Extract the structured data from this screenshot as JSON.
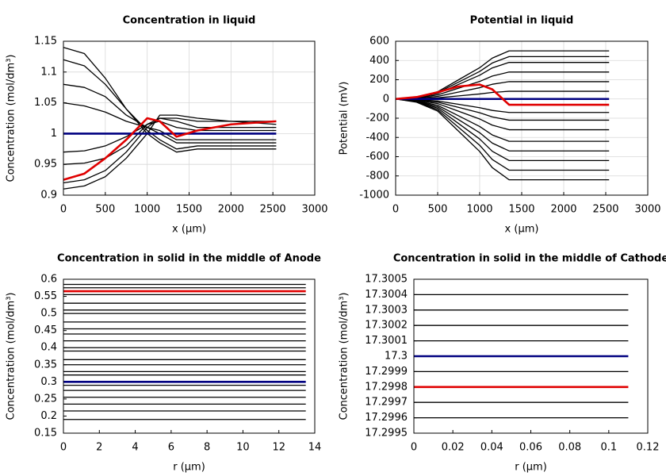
{
  "chart_data": [
    {
      "type": "line",
      "title": "Concentration in liquid",
      "x_label": "x (μm)",
      "y_label": "Concentration (mol/dm³)",
      "xlim": [
        0,
        3000
      ],
      "xticks": [
        0,
        500,
        1000,
        1500,
        2000,
        2500,
        3000
      ],
      "ylim": [
        0.9,
        1.15
      ],
      "yticks": [
        0.9,
        0.95,
        1,
        1.05,
        1.1,
        1.15
      ],
      "grid": true,
      "x": [
        0,
        250,
        500,
        750,
        1000,
        1150,
        1350,
        1600,
        2000,
        2540
      ],
      "series": [
        {
          "color": "#000000",
          "values": [
            1.14,
            1.13,
            1.09,
            1.04,
            1.0,
            0.985,
            0.97,
            0.975,
            0.975,
            0.975
          ]
        },
        {
          "color": "#000000",
          "values": [
            1.12,
            1.11,
            1.08,
            1.04,
            1.005,
            0.99,
            0.975,
            0.98,
            0.98,
            0.98
          ]
        },
        {
          "color": "#000000",
          "values": [
            1.08,
            1.075,
            1.06,
            1.03,
            1.01,
            1.0,
            0.985,
            0.985,
            0.985,
            0.985
          ]
        },
        {
          "color": "#000000",
          "values": [
            1.05,
            1.045,
            1.035,
            1.02,
            1.01,
            1.005,
            0.99,
            0.99,
            0.99,
            0.99
          ]
        },
        {
          "color": "#000000",
          "values": [
            0.97,
            0.972,
            0.98,
            0.995,
            1.015,
            1.02,
            1.01,
            1.005,
            1.005,
            1.005
          ]
        },
        {
          "color": "#000000",
          "values": [
            0.95,
            0.952,
            0.96,
            0.98,
            1.015,
            1.025,
            1.02,
            1.01,
            1.01,
            1.01
          ]
        },
        {
          "color": "#000000",
          "values": [
            0.91,
            0.915,
            0.93,
            0.96,
            1.0,
            1.03,
            1.03,
            1.025,
            1.02,
            1.015
          ]
        },
        {
          "color": "#000000",
          "values": [
            0.92,
            0.925,
            0.94,
            0.97,
            1.01,
            1.025,
            1.025,
            1.02,
            1.02,
            1.02
          ]
        },
        {
          "color": "#000080",
          "values": [
            1,
            1,
            1,
            1,
            1,
            1,
            1,
            1,
            1,
            1
          ]
        },
        {
          "color": "#e00000",
          "values": [
            0.925,
            0.935,
            0.96,
            0.99,
            1.025,
            1.02,
            0.995,
            1.005,
            1.015,
            1.02
          ]
        }
      ]
    },
    {
      "type": "line",
      "title": "Potential in liquid",
      "x_label": "x (μm)",
      "y_label": "Potential (mV)",
      "xlim": [
        0,
        3000
      ],
      "xticks": [
        0,
        500,
        1000,
        1500,
        2000,
        2500,
        3000
      ],
      "ylim": [
        -1000,
        600
      ],
      "yticks": [
        -1000,
        -800,
        -600,
        -400,
        -200,
        0,
        200,
        400,
        600
      ],
      "grid": true,
      "x": [
        0,
        250,
        500,
        750,
        1000,
        1150,
        1350,
        1600,
        2000,
        2540
      ],
      "series": [
        {
          "color": "#000000",
          "values": [
            0,
            20,
            75,
            200,
            325,
            425,
            500,
            500,
            500,
            500
          ]
        },
        {
          "color": "#000000",
          "values": [
            0,
            18,
            66,
            176,
            286,
            374,
            440,
            440,
            440,
            440
          ]
        },
        {
          "color": "#000000",
          "values": [
            0,
            15,
            57,
            152,
            247,
            323,
            380,
            380,
            380,
            380
          ]
        },
        {
          "color": "#000000",
          "values": [
            0,
            11,
            42,
            112,
            182,
            238,
            280,
            280,
            280,
            280
          ]
        },
        {
          "color": "#000000",
          "values": [
            0,
            7,
            27,
            72,
            117,
            153,
            180,
            180,
            180,
            180
          ]
        },
        {
          "color": "#000000",
          "values": [
            0,
            3,
            12,
            32,
            52,
            68,
            80,
            80,
            80,
            80
          ]
        },
        {
          "color": "#000000",
          "values": [
            0,
            -6,
            -21,
            -56,
            -91,
            -119,
            -140,
            -140,
            -140,
            -140
          ]
        },
        {
          "color": "#000000",
          "values": [
            0,
            -9,
            -33,
            -88,
            -143,
            -187,
            -220,
            -220,
            -220,
            -220
          ]
        },
        {
          "color": "#000000",
          "values": [
            0,
            -13,
            -48,
            -128,
            -208,
            -272,
            -320,
            -320,
            -320,
            -320
          ]
        },
        {
          "color": "#000000",
          "values": [
            0,
            -18,
            -66,
            -176,
            -286,
            -374,
            -440,
            -440,
            -440,
            -440
          ]
        },
        {
          "color": "#000000",
          "values": [
            0,
            -22,
            -81,
            -216,
            -351,
            -459,
            -540,
            -540,
            -540,
            -540
          ]
        },
        {
          "color": "#000000",
          "values": [
            0,
            -26,
            -96,
            -256,
            -416,
            -544,
            -640,
            -640,
            -640,
            -640
          ]
        },
        {
          "color": "#000000",
          "values": [
            0,
            -30,
            -111,
            -296,
            -481,
            -629,
            -740,
            -740,
            -740,
            -740
          ]
        },
        {
          "color": "#000000",
          "values": [
            0,
            -34,
            -126,
            -336,
            -546,
            -714,
            -840,
            -840,
            -840,
            -840
          ]
        },
        {
          "color": "#000080",
          "values": [
            0,
            0,
            0,
            0,
            0,
            0,
            0,
            0,
            0,
            0
          ]
        },
        {
          "color": "#e00000",
          "values": [
            0,
            20,
            70,
            130,
            150,
            100,
            -60,
            -60,
            -60,
            -60
          ]
        }
      ]
    },
    {
      "type": "line",
      "title": "Concentration in solid in the middle of Anode",
      "x_label": "r (μm)",
      "y_label": "Concentration (mol/dm³)",
      "xlim": [
        0,
        14
      ],
      "xticks": [
        0,
        2,
        4,
        6,
        8,
        10,
        12,
        14
      ],
      "ylim": [
        0.15,
        0.6
      ],
      "yticks": [
        0.15,
        0.2,
        0.25,
        0.3,
        0.35,
        0.4,
        0.45,
        0.5,
        0.55,
        0.6
      ],
      "grid": false,
      "x": [
        0,
        13.5
      ],
      "series": [
        {
          "color": "#000000",
          "values": [
            0.585,
            0.585
          ]
        },
        {
          "color": "#000000",
          "values": [
            0.575,
            0.575
          ]
        },
        {
          "color": "#000000",
          "values": [
            0.555,
            0.555
          ]
        },
        {
          "color": "#000000",
          "values": [
            0.53,
            0.53
          ]
        },
        {
          "color": "#000000",
          "values": [
            0.51,
            0.51
          ]
        },
        {
          "color": "#000000",
          "values": [
            0.5,
            0.5
          ]
        },
        {
          "color": "#000000",
          "values": [
            0.475,
            0.475
          ]
        },
        {
          "color": "#000000",
          "values": [
            0.455,
            0.455
          ]
        },
        {
          "color": "#000000",
          "values": [
            0.44,
            0.44
          ]
        },
        {
          "color": "#000000",
          "values": [
            0.42,
            0.42
          ]
        },
        {
          "color": "#000000",
          "values": [
            0.4,
            0.4
          ]
        },
        {
          "color": "#000000",
          "values": [
            0.39,
            0.39
          ]
        },
        {
          "color": "#000000",
          "values": [
            0.365,
            0.365
          ]
        },
        {
          "color": "#000000",
          "values": [
            0.35,
            0.35
          ]
        },
        {
          "color": "#000000",
          "values": [
            0.33,
            0.33
          ]
        },
        {
          "color": "#000000",
          "values": [
            0.32,
            0.32
          ]
        },
        {
          "color": "#000000",
          "values": [
            0.29,
            0.29
          ]
        },
        {
          "color": "#000000",
          "values": [
            0.275,
            0.275
          ]
        },
        {
          "color": "#000000",
          "values": [
            0.255,
            0.255
          ]
        },
        {
          "color": "#000000",
          "values": [
            0.235,
            0.235
          ]
        },
        {
          "color": "#000000",
          "values": [
            0.215,
            0.215
          ]
        },
        {
          "color": "#000000",
          "values": [
            0.19,
            0.19
          ]
        },
        {
          "color": "#000080",
          "values": [
            0.3,
            0.3
          ]
        },
        {
          "color": "#e00000",
          "values": [
            0.565,
            0.565
          ]
        }
      ]
    },
    {
      "type": "line",
      "title": "Concentration in solid in the middle of Cathode",
      "x_label": "r (μm)",
      "y_label": "Concentration (mol/dm³)",
      "xlim": [
        0,
        0.12
      ],
      "xticks": [
        0,
        0.02,
        0.04,
        0.06,
        0.08,
        0.1,
        0.12
      ],
      "ylim": [
        17.2995,
        17.3005
      ],
      "yticks": [
        17.2995,
        17.2996,
        17.2997,
        17.2998,
        17.2999,
        17.3,
        17.3001,
        17.3002,
        17.3003,
        17.3004,
        17.3005
      ],
      "grid": false,
      "x": [
        0,
        0.11
      ],
      "series": [
        {
          "color": "#000000",
          "values": [
            17.3004,
            17.3004
          ]
        },
        {
          "color": "#000000",
          "values": [
            17.3003,
            17.3003
          ]
        },
        {
          "color": "#000000",
          "values": [
            17.3002,
            17.3002
          ]
        },
        {
          "color": "#000000",
          "values": [
            17.3001,
            17.3001
          ]
        },
        {
          "color": "#000000",
          "values": [
            17.2999,
            17.2999
          ]
        },
        {
          "color": "#000000",
          "values": [
            17.2997,
            17.2997
          ]
        },
        {
          "color": "#000000",
          "values": [
            17.2996,
            17.2996
          ]
        },
        {
          "color": "#000080",
          "values": [
            17.3,
            17.3
          ]
        },
        {
          "color": "#e00000",
          "values": [
            17.2998,
            17.2998
          ]
        }
      ]
    }
  ]
}
